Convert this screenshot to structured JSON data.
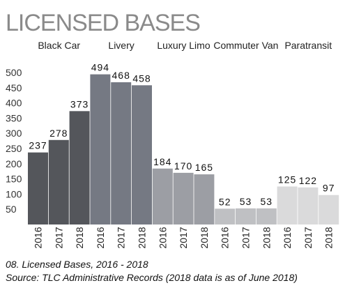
{
  "chart_data": {
    "type": "bar",
    "title": "LICENSED BASES",
    "ylim": [
      0,
      520
    ],
    "yticks": [
      50,
      100,
      150,
      200,
      250,
      300,
      350,
      400,
      450,
      500
    ],
    "groups": [
      {
        "name": "Black Car",
        "color": "#54565b",
        "categories": [
          "2016",
          "2017",
          "2018"
        ],
        "values": [
          237,
          278,
          373
        ]
      },
      {
        "name": "Livery",
        "color": "#757983",
        "categories": [
          "2016",
          "2017",
          "2018"
        ],
        "values": [
          494,
          468,
          458
        ]
      },
      {
        "name": "Luxury Limo",
        "color": "#9c9ea4",
        "categories": [
          "2016",
          "2017",
          "2018"
        ],
        "values": [
          184,
          170,
          165
        ]
      },
      {
        "name": "Commuter Van",
        "color": "#bfc0c3",
        "categories": [
          "2016",
          "2017",
          "2018"
        ],
        "values": [
          52,
          53,
          53
        ]
      },
      {
        "name": "Paratransit",
        "color": "#dadadb",
        "categories": [
          "2016",
          "2017",
          "2018"
        ],
        "values": [
          125,
          122,
          97
        ]
      }
    ]
  },
  "caption": {
    "line1": "08. Licensed Bases, 2016 - 2018",
    "line2": "Source: TLC Administrative Records (2018 data is as of June 2018)"
  }
}
